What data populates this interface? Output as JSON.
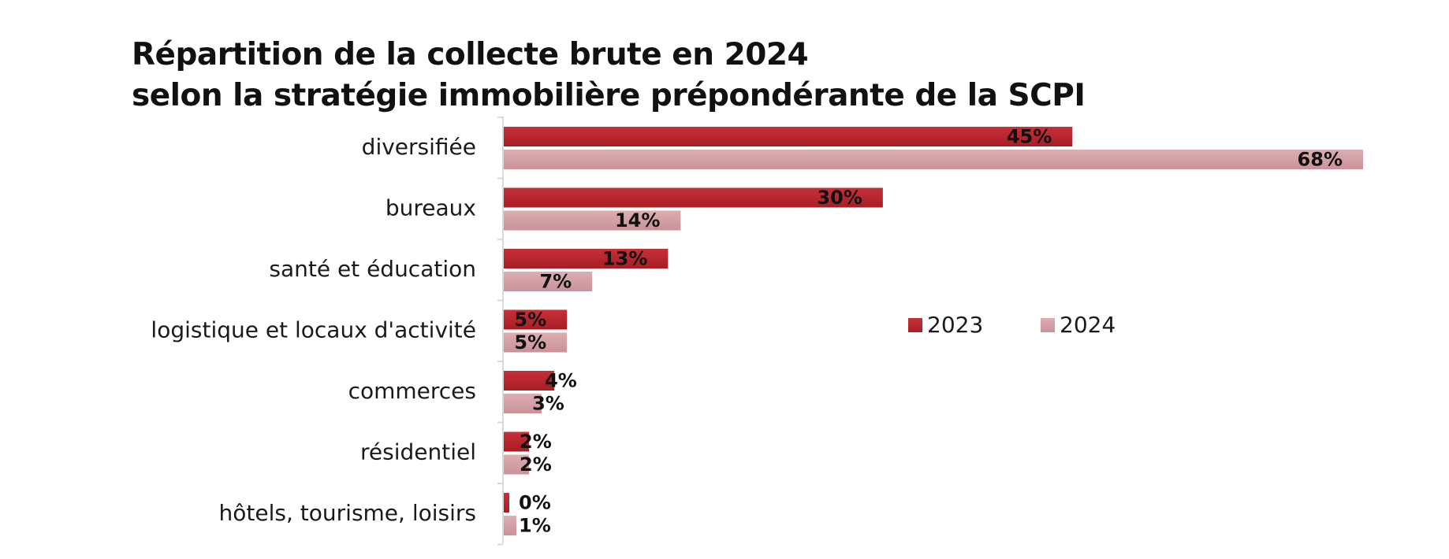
{
  "title_line1": "Répartition de la collecte brute en 2024",
  "title_line2": "selon la stratégie immobilière prépondérante de la SCPI",
  "colors": {
    "series_2023": "#b8232b",
    "series_2024": "#d6a3a8",
    "axis": "#d9d9d9",
    "text": "#1a1a1a"
  },
  "chart_data": {
    "type": "bar",
    "orientation": "horizontal",
    "categories": [
      "diversifiée",
      "bureaux",
      "santé et éducation",
      "logistique et locaux d'activité",
      "commerces",
      "résidentiel",
      "hôtels, tourisme, loisirs"
    ],
    "series": [
      {
        "name": "2023",
        "values": [
          45,
          30,
          13,
          5,
          4,
          2,
          0
        ],
        "labels": [
          "45%",
          "30%",
          "13%",
          "5%",
          "4%",
          "2%",
          "0%"
        ]
      },
      {
        "name": "2024",
        "values": [
          68,
          14,
          7,
          5,
          3,
          2,
          1
        ],
        "labels": [
          "68%",
          "14%",
          "7%",
          "5%",
          "3%",
          "2%",
          "1%"
        ]
      }
    ],
    "xlim": [
      0,
      68
    ],
    "grid": false,
    "legend_position": "center-right"
  }
}
